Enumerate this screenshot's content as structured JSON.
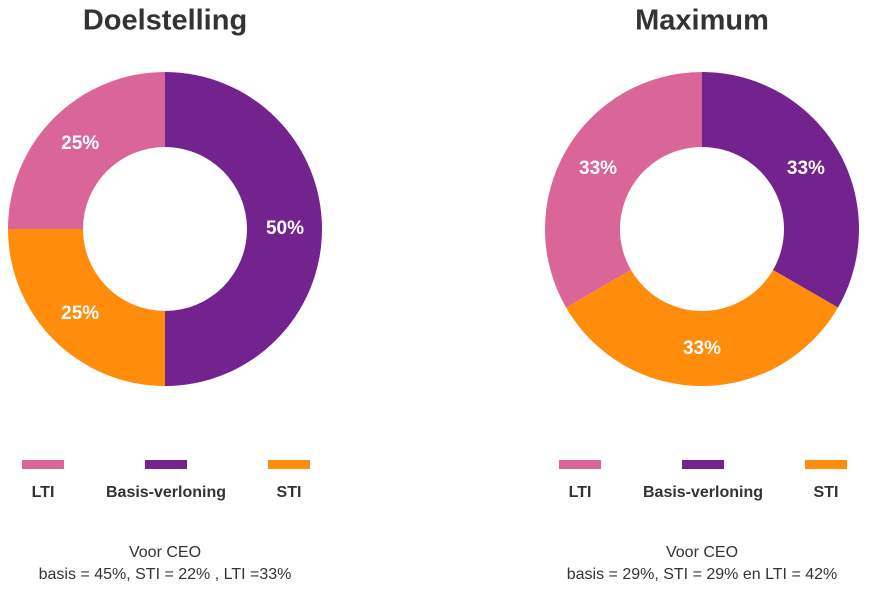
{
  "chart_data": [
    {
      "type": "pie",
      "title": "Doelstelling",
      "categories": [
        "LTI",
        "Basis-verloning",
        "STI"
      ],
      "values": [
        25,
        50,
        25
      ],
      "value_labels": [
        "25%",
        "50%",
        "25%"
      ],
      "colors": [
        "#da6699",
        "#72238e",
        "#ff8c0a"
      ],
      "notes": [
        "Voor CEO",
        "basis = 45%, STI = 22% , LTI =33%"
      ]
    },
    {
      "type": "pie",
      "title": "Maximum",
      "categories": [
        "LTI",
        "Basis-verloning",
        "STI"
      ],
      "values": [
        33,
        33,
        33
      ],
      "value_labels": [
        "33%",
        "33%",
        "33%"
      ],
      "colors": [
        "#da6699",
        "#72238e",
        "#ff8c0a"
      ],
      "notes": [
        "Voor CEO",
        "basis = 29%, STI = 29% en LTI = 42%"
      ]
    }
  ]
}
